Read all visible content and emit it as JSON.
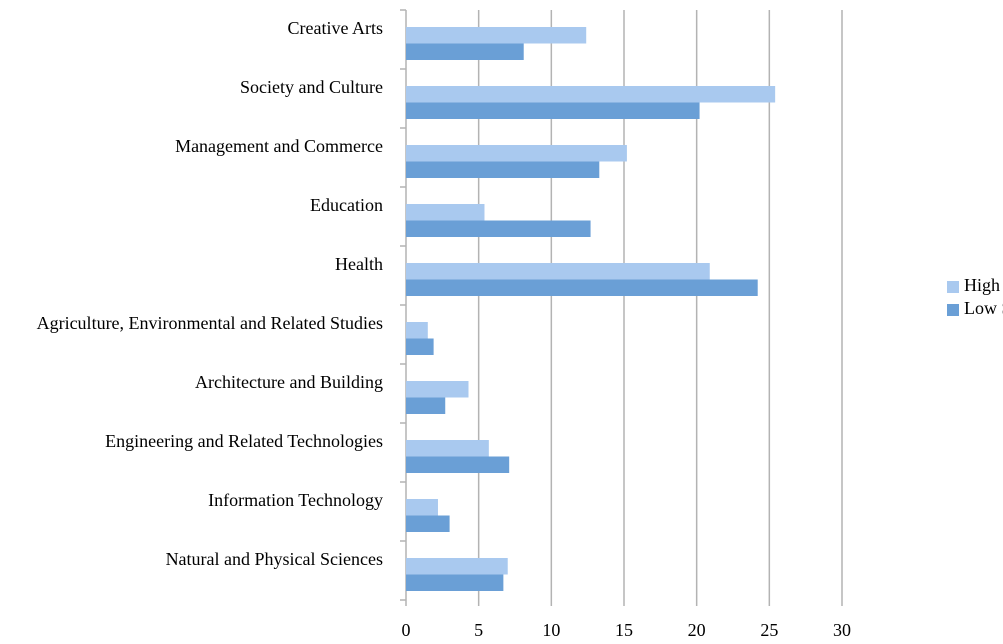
{
  "chart_data": {
    "type": "hbar",
    "categories": [
      "Creative Arts",
      "Society and Culture",
      "Management and Commerce",
      "Education",
      "Health",
      "Agriculture, Environmental and Related Studies",
      "Architecture and Building",
      "Engineering and Related Technologies",
      "Information Technology",
      "Natural and Physical Sciences"
    ],
    "series": [
      {
        "name": "High SES",
        "color": "#a9c9ef",
        "values": [
          12.4,
          25.4,
          15.2,
          5.4,
          20.9,
          1.5,
          4.3,
          5.7,
          2.2,
          7.0
        ]
      },
      {
        "name": "Low SES",
        "color": "#6a9fd6",
        "values": [
          8.1,
          20.2,
          13.3,
          12.7,
          24.2,
          1.9,
          2.7,
          7.1,
          3.0,
          6.7
        ]
      }
    ],
    "xlim": [
      0,
      30
    ],
    "xticks": [
      0,
      5,
      10,
      15,
      20,
      25,
      30
    ],
    "grid": true,
    "legend": "right"
  }
}
